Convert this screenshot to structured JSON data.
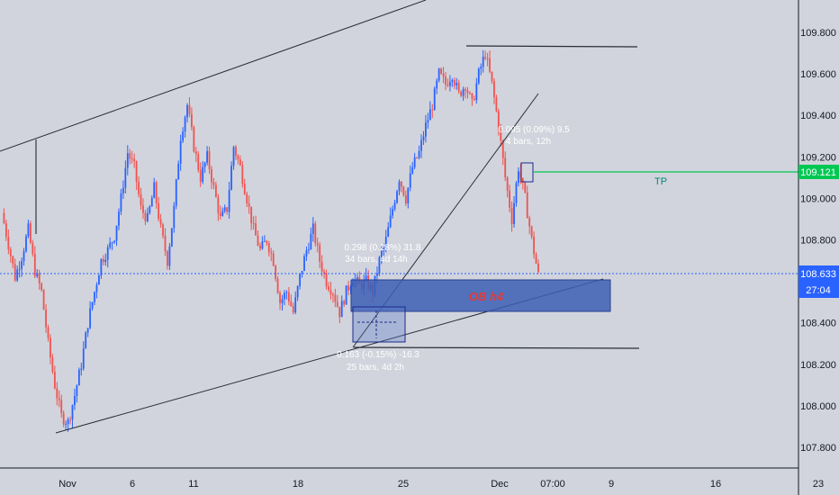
{
  "chart_data": {
    "type": "candlestick",
    "instrument_price_axis": {
      "ticks": [
        "109.800",
        "109.600",
        "109.400",
        "109.200",
        "109.000",
        "108.800",
        "108.600",
        "108.400",
        "108.200",
        "108.000",
        "107.800"
      ],
      "ylim": [
        107.72,
        109.92
      ]
    },
    "time_axis": {
      "ticks": [
        "Nov",
        "6",
        "11",
        "18",
        "25",
        "Dec",
        "07:00",
        "9",
        "16",
        "23"
      ]
    },
    "current_price": {
      "label": "108.633",
      "countdown": "27:04",
      "color": "#2962ff"
    },
    "tp_price": {
      "label": "109.121",
      "color": "#00c853"
    },
    "annotations": {
      "tp": "TP",
      "ob": "OB h4",
      "measure_top_1": "0.298 (0.28%) 31.8",
      "measure_top_2": "34 bars, 4d 14h",
      "measure_bottom_1": "0.163 (-0.15%) -16.3",
      "measure_bottom_2": "25 bars, 4d 2h",
      "measure_right_1": "0.095 (0.09%) 9.5",
      "measure_right_2": "4 bars, 12h"
    },
    "colors": {
      "up": "#2962ff",
      "down": "#ef5350",
      "background": "#d1d4dc",
      "ob_zone": "#3d5fb5"
    },
    "path_closes": [
      108.93,
      108.78,
      108.62,
      108.72,
      108.85,
      108.65,
      108.55,
      108.3,
      108.1,
      107.95,
      107.92,
      108.05,
      108.2,
      108.4,
      108.55,
      108.7,
      108.75,
      108.82,
      109.0,
      109.22,
      109.15,
      108.95,
      108.9,
      109.05,
      108.85,
      108.7,
      108.95,
      109.3,
      109.45,
      109.25,
      109.1,
      109.2,
      109.05,
      108.9,
      108.95,
      109.25,
      109.15,
      109.0,
      108.85,
      108.75,
      108.8,
      108.7,
      108.5,
      108.55,
      108.45,
      108.62,
      108.75,
      108.85,
      108.7,
      108.6,
      108.55,
      108.45,
      108.55,
      108.62,
      108.58,
      108.6,
      108.55,
      108.7,
      108.8,
      108.95,
      109.1,
      109.0,
      109.15,
      109.22,
      109.35,
      109.45,
      109.6,
      109.55,
      109.6,
      109.5,
      109.55,
      109.45,
      109.6,
      109.7,
      109.55,
      109.35,
      109.1,
      108.9,
      109.15,
      109.0,
      108.8,
      108.63
    ]
  }
}
